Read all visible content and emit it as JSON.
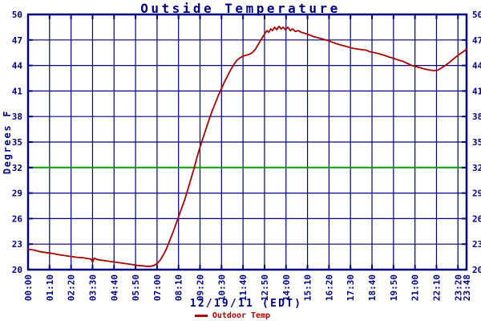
{
  "chart_data": {
    "type": "line",
    "title": "Outside Temperature",
    "ylabel": "Degrees F",
    "xlabel": "12/19/11 (EDT)",
    "ylim": [
      20,
      50
    ],
    "y_tick_step": 3,
    "y_ticks": [
      20,
      23,
      26,
      29,
      32,
      35,
      38,
      41,
      44,
      47,
      50
    ],
    "y_labels_both_sides": true,
    "x_total_minutes": 1428,
    "x_ticks": [
      {
        "label": "00:00",
        "m": 0
      },
      {
        "label": "01:10",
        "m": 70
      },
      {
        "label": "02:20",
        "m": 140
      },
      {
        "label": "03:30",
        "m": 210
      },
      {
        "label": "04:40",
        "m": 280
      },
      {
        "label": "05:50",
        "m": 350
      },
      {
        "label": "07:00",
        "m": 420
      },
      {
        "label": "08:10",
        "m": 490
      },
      {
        "label": "09:20",
        "m": 560
      },
      {
        "label": "10:30",
        "m": 630
      },
      {
        "label": "11:40",
        "m": 700
      },
      {
        "label": "12:50",
        "m": 770
      },
      {
        "label": "14:00",
        "m": 840
      },
      {
        "label": "15:10",
        "m": 910
      },
      {
        "label": "16:20",
        "m": 980
      },
      {
        "label": "17:30",
        "m": 1050
      },
      {
        "label": "18:40",
        "m": 1120
      },
      {
        "label": "19:50",
        "m": 1190
      },
      {
        "label": "21:00",
        "m": 1260
      },
      {
        "label": "22:10",
        "m": 1330
      },
      {
        "label": "23:20",
        "m": 1400
      },
      {
        "label": "23:48",
        "m": 1428
      }
    ],
    "grid": true,
    "freezing_line": {
      "value": 32,
      "color": "#00a000"
    },
    "legend": {
      "position": "bottom-center",
      "entries": [
        {
          "label": "Outdoor Temp",
          "color": "#a80000"
        }
      ]
    },
    "colors": {
      "axis_text": "#000080",
      "grid": "#000080",
      "border": "#000080",
      "background": "#ffffff"
    },
    "series": [
      {
        "name": "Outdoor Temp",
        "color": "#a80000",
        "points_min_degF": [
          [
            0,
            22.4
          ],
          [
            20,
            22.3
          ],
          [
            40,
            22.1
          ],
          [
            60,
            22.0
          ],
          [
            80,
            21.9
          ],
          [
            100,
            21.75
          ],
          [
            120,
            21.65
          ],
          [
            140,
            21.55
          ],
          [
            160,
            21.45
          ],
          [
            180,
            21.4
          ],
          [
            195,
            21.3
          ],
          [
            205,
            21.25
          ],
          [
            210,
            20.9
          ],
          [
            216,
            21.35
          ],
          [
            224,
            21.2
          ],
          [
            240,
            21.1
          ],
          [
            260,
            21.0
          ],
          [
            280,
            20.9
          ],
          [
            300,
            20.8
          ],
          [
            320,
            20.7
          ],
          [
            340,
            20.6
          ],
          [
            355,
            20.5
          ],
          [
            370,
            20.45
          ],
          [
            385,
            20.4
          ],
          [
            400,
            20.4
          ],
          [
            410,
            20.5
          ],
          [
            420,
            20.7
          ],
          [
            430,
            21.1
          ],
          [
            440,
            21.7
          ],
          [
            450,
            22.4
          ],
          [
            460,
            23.3
          ],
          [
            470,
            24.2
          ],
          [
            480,
            25.2
          ],
          [
            490,
            26.2
          ],
          [
            500,
            27.2
          ],
          [
            510,
            28.2
          ],
          [
            520,
            29.4
          ],
          [
            530,
            30.6
          ],
          [
            540,
            31.8
          ],
          [
            550,
            33.2
          ],
          [
            560,
            34.4
          ],
          [
            570,
            35.5
          ],
          [
            580,
            36.6
          ],
          [
            590,
            37.7
          ],
          [
            600,
            38.7
          ],
          [
            610,
            39.6
          ],
          [
            620,
            40.5
          ],
          [
            630,
            41.3
          ],
          [
            640,
            42.1
          ],
          [
            650,
            42.8
          ],
          [
            660,
            43.5
          ],
          [
            670,
            44.1
          ],
          [
            680,
            44.6
          ],
          [
            690,
            44.9
          ],
          [
            700,
            45.1
          ],
          [
            710,
            45.2
          ],
          [
            720,
            45.3
          ],
          [
            730,
            45.5
          ],
          [
            740,
            45.9
          ],
          [
            750,
            46.5
          ],
          [
            760,
            47.1
          ],
          [
            770,
            47.7
          ],
          [
            778,
            48.1
          ],
          [
            784,
            47.9
          ],
          [
            790,
            48.3
          ],
          [
            796,
            48.1
          ],
          [
            803,
            48.5
          ],
          [
            810,
            48.2
          ],
          [
            817,
            48.6
          ],
          [
            824,
            48.3
          ],
          [
            831,
            48.5
          ],
          [
            838,
            48.2
          ],
          [
            846,
            48.5
          ],
          [
            854,
            48.1
          ],
          [
            862,
            48.3
          ],
          [
            870,
            48.0
          ],
          [
            880,
            48.1
          ],
          [
            890,
            47.9
          ],
          [
            900,
            47.8
          ],
          [
            915,
            47.6
          ],
          [
            930,
            47.4
          ],
          [
            945,
            47.25
          ],
          [
            960,
            47.1
          ],
          [
            980,
            46.9
          ],
          [
            1000,
            46.6
          ],
          [
            1020,
            46.4
          ],
          [
            1040,
            46.2
          ],
          [
            1060,
            46.0
          ],
          [
            1080,
            45.9
          ],
          [
            1100,
            45.8
          ],
          [
            1115,
            45.6
          ],
          [
            1130,
            45.5
          ],
          [
            1145,
            45.35
          ],
          [
            1160,
            45.2
          ],
          [
            1175,
            45.0
          ],
          [
            1190,
            44.85
          ],
          [
            1205,
            44.65
          ],
          [
            1220,
            44.5
          ],
          [
            1235,
            44.25
          ],
          [
            1250,
            44.0
          ],
          [
            1265,
            43.85
          ],
          [
            1280,
            43.7
          ],
          [
            1295,
            43.55
          ],
          [
            1310,
            43.45
          ],
          [
            1322,
            43.4
          ],
          [
            1334,
            43.45
          ],
          [
            1346,
            43.7
          ],
          [
            1358,
            44.0
          ],
          [
            1370,
            44.3
          ],
          [
            1380,
            44.6
          ],
          [
            1390,
            44.9
          ],
          [
            1400,
            45.2
          ],
          [
            1414,
            45.55
          ],
          [
            1428,
            45.9
          ]
        ]
      }
    ]
  }
}
